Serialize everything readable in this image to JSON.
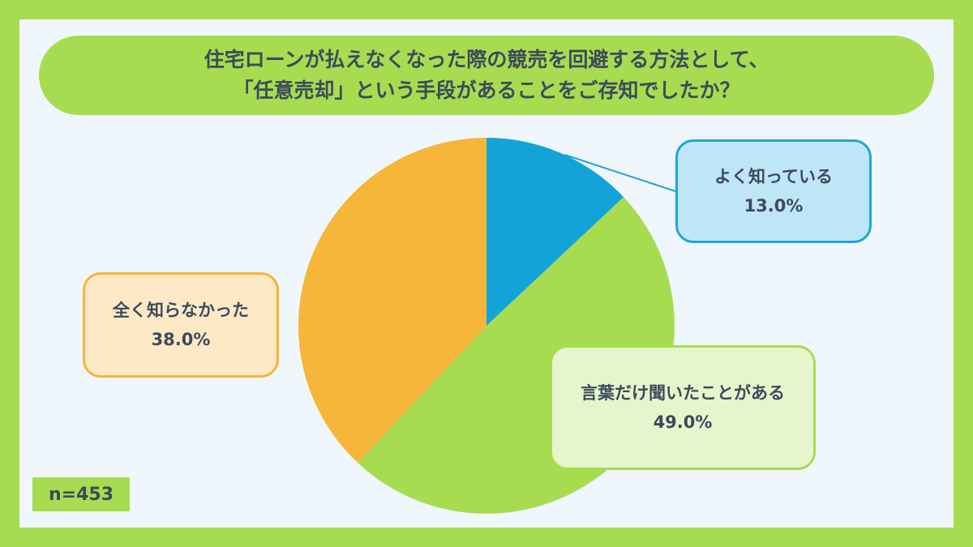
{
  "title": {
    "line1": "住宅ローンが払えなくなった際の競売を回避する方法として、",
    "line2": "「任意売却」という手段があることをご存知でしたか？"
  },
  "sample_size": "n=453",
  "chart_data": {
    "type": "pie",
    "categories": [
      "よく知っている",
      "言葉だけ聞いたことがある",
      "全く知らなかった"
    ],
    "values": [
      13.0,
      49.0,
      38.0
    ],
    "value_labels": [
      "13.0%",
      "49.0%",
      "38.0%"
    ],
    "colors": [
      "#13a3d8",
      "#a8dc50",
      "#f6b63a"
    ],
    "start": "top",
    "direction": "clockwise"
  },
  "colors": {
    "background": "#a8dc50",
    "panel": "#eff7fc",
    "text": "#3c4a5c"
  }
}
